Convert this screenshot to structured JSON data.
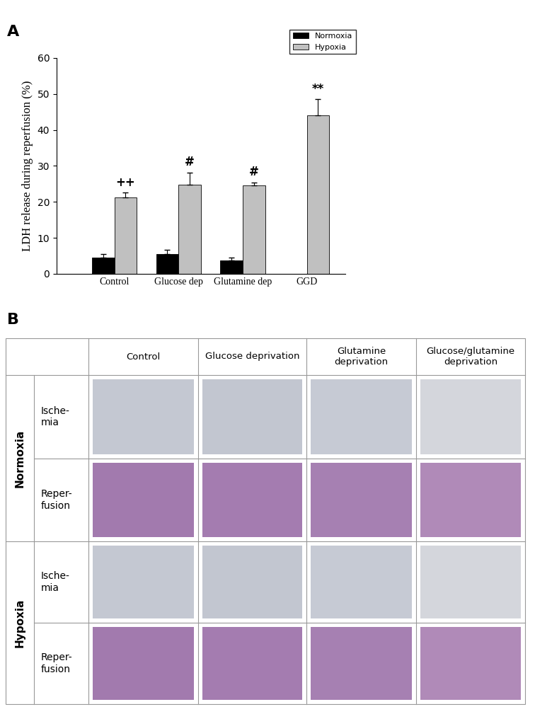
{
  "panel_labels": [
    "A",
    "B"
  ],
  "chart_data": {
    "type": "bar",
    "y_label": "LDH release during reperfusion (%)",
    "categories": [
      "Control",
      "Glucose dep",
      "Glutamine dep",
      "GGD"
    ],
    "series": [
      {
        "name": "Normoxia",
        "color": "#000000",
        "values": [
          4.6,
          5.6,
          3.8,
          null
        ],
        "errors": [
          1.0,
          1.0,
          0.7,
          null
        ]
      },
      {
        "name": "Hypoxia",
        "color": "#c0c0c0",
        "values": [
          21.2,
          24.7,
          24.5,
          44.0
        ],
        "errors": [
          1.4,
          3.5,
          0.9,
          4.5
        ],
        "annotations": [
          "++",
          "#",
          "#",
          "**"
        ]
      }
    ],
    "ylim": [
      0,
      60
    ],
    "yticks": [
      0,
      10,
      20,
      30,
      40,
      50,
      60
    ],
    "legend": "upper right"
  },
  "table": {
    "header": [
      "Control",
      "Glucose deprivation",
      "Glutamine\ndeprivation",
      "Glucose/glutamine\ndeprivation"
    ],
    "row_groups": [
      {
        "label": "Normoxia",
        "rows": [
          "Ische-\nmia",
          "Reper-\nfusion"
        ]
      },
      {
        "label": "Hypoxia",
        "rows": [
          "Ische-\nmia",
          "Reper-\nfusion"
        ]
      }
    ]
  }
}
